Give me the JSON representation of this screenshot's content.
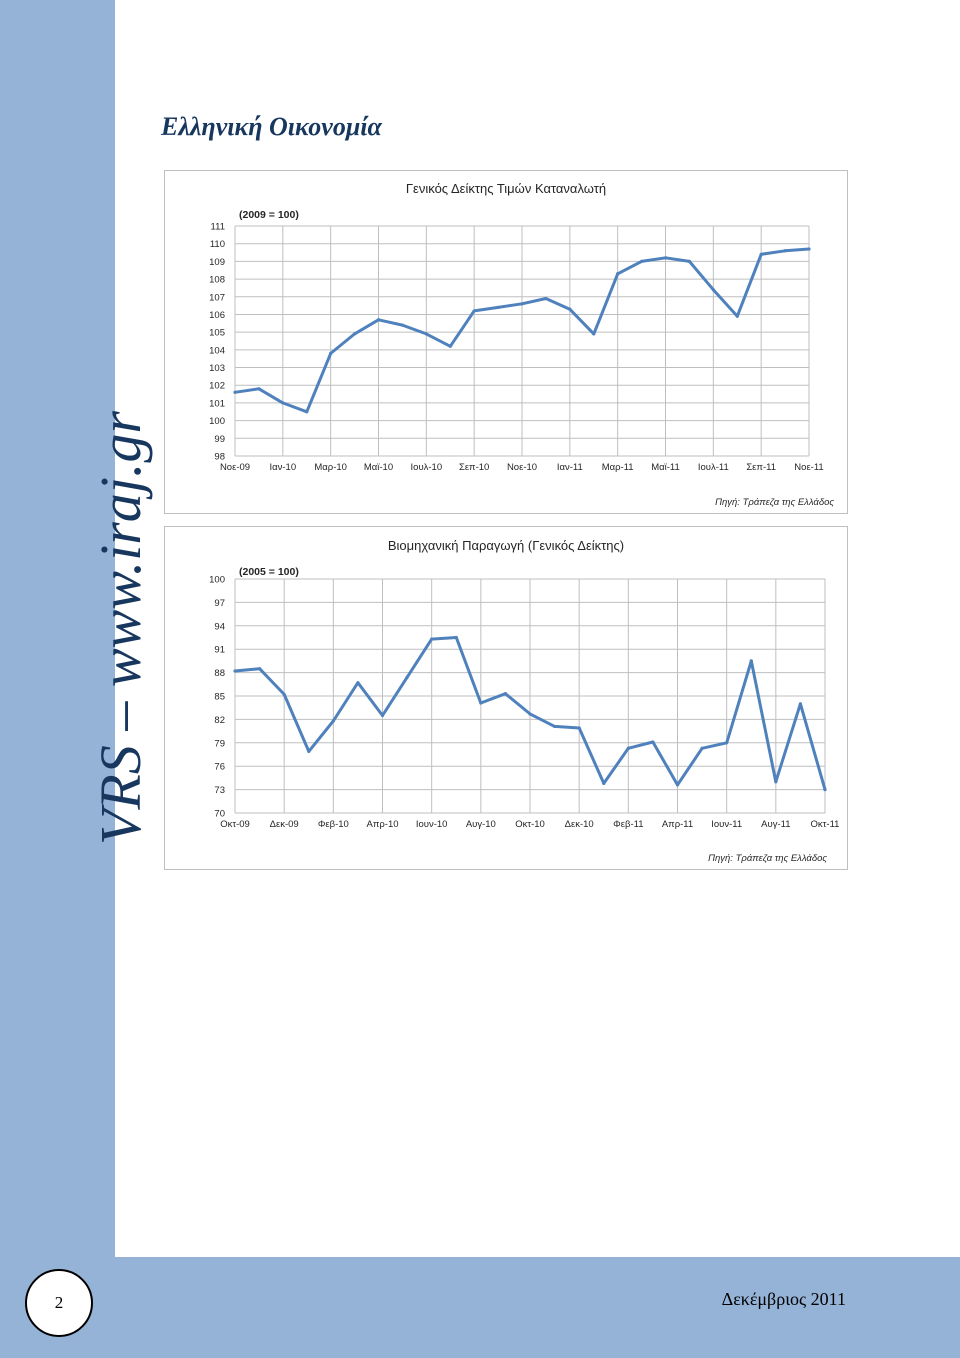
{
  "page": {
    "heading": "Ελληνική Οικονομία",
    "sidebar_text": "VRS – www.iraj.gr",
    "page_number": "2",
    "footer_date": "Δεκέμβριος 2011"
  },
  "colors": {
    "sidebar": "#95b3d7",
    "line": "#4f81bd",
    "grid": "#bfbfbf",
    "heading": "#17375e"
  },
  "chart_data": [
    {
      "type": "line",
      "title": "Γενικός Δείκτης Τιμών Καταναλωτή",
      "subtitle": "(2009 = 100)",
      "source": "Πηγή: Τράπεζα της Ελλάδος",
      "ylim": [
        98,
        111
      ],
      "yticks": [
        98,
        99,
        100,
        101,
        102,
        103,
        104,
        105,
        106,
        107,
        108,
        109,
        110,
        111
      ],
      "xtick_labels": [
        "Νοε-09",
        "Ιαν-10",
        "Μαρ-10",
        "Μαϊ-10",
        "Ιουλ-10",
        "Σεπ-10",
        "Νοε-10",
        "Ιαν-11",
        "Μαρ-11",
        "Μαϊ-11",
        "Ιουλ-11",
        "Σεπ-11",
        "Νοε-11"
      ],
      "grid": true,
      "series": [
        {
          "x": [
            "Νοε-09",
            "Δεκ-09",
            "Ιαν-10",
            "Φεβ-10",
            "Μαρ-10",
            "Απρ-10",
            "Μαϊ-10",
            "Ιουν-10",
            "Ιουλ-10",
            "Αυγ-10",
            "Σεπ-10",
            "Οκτ-10",
            "Νοε-10",
            "Δεκ-10",
            "Ιαν-11",
            "Φεβ-11",
            "Μαρ-11",
            "Απρ-11",
            "Μαϊ-11",
            "Ιουν-11",
            "Ιουλ-11",
            "Αυγ-11",
            "Σεπ-11",
            "Οκτ-11",
            "Νοε-11"
          ],
          "values": [
            101.6,
            101.8,
            101.0,
            100.5,
            103.8,
            104.9,
            105.7,
            105.4,
            104.9,
            104.2,
            106.2,
            106.4,
            106.6,
            106.9,
            106.3,
            104.9,
            108.3,
            109.0,
            109.2,
            109.0,
            107.4,
            105.9,
            109.4,
            109.6,
            109.7
          ]
        }
      ]
    },
    {
      "type": "line",
      "title": "Βιομηχανική Παραγωγή (Γενικός Δείκτης)",
      "subtitle": "(2005 = 100)",
      "source": "Πηγή: Τράπεζα της Ελλάδος",
      "ylim": [
        70,
        100
      ],
      "yticks": [
        70,
        73,
        76,
        79,
        82,
        85,
        88,
        91,
        94,
        97,
        100
      ],
      "xtick_labels": [
        "Οκτ-09",
        "Δεκ-09",
        "Φεβ-10",
        "Απρ-10",
        "Ιουν-10",
        "Αυγ-10",
        "Οκτ-10",
        "Δεκ-10",
        "Φεβ-11",
        "Απρ-11",
        "Ιουν-11",
        "Αυγ-11",
        "Οκτ-11"
      ],
      "grid": true,
      "series": [
        {
          "x": [
            "Οκτ-09",
            "Νοε-09",
            "Δεκ-09",
            "Ιαν-10",
            "Φεβ-10",
            "Μαρ-10",
            "Απρ-10",
            "Μαϊ-10",
            "Ιουν-10",
            "Ιουλ-10",
            "Αυγ-10",
            "Σεπ-10",
            "Οκτ-10",
            "Νοε-10",
            "Δεκ-10",
            "Ιαν-11",
            "Φεβ-11",
            "Μαρ-11",
            "Απρ-11",
            "Μαϊ-11",
            "Ιουν-11",
            "Ιουλ-11",
            "Αυγ-11",
            "Σεπ-11",
            "Οκτ-11"
          ],
          "values": [
            88.2,
            88.5,
            85.2,
            77.9,
            81.8,
            86.7,
            82.5,
            87.4,
            92.3,
            92.5,
            84.1,
            85.3,
            82.7,
            81.1,
            80.9,
            73.8,
            78.3,
            79.1,
            73.6,
            78.3,
            79.0,
            89.5,
            74.0,
            84.0,
            73.0
          ]
        }
      ]
    }
  ]
}
